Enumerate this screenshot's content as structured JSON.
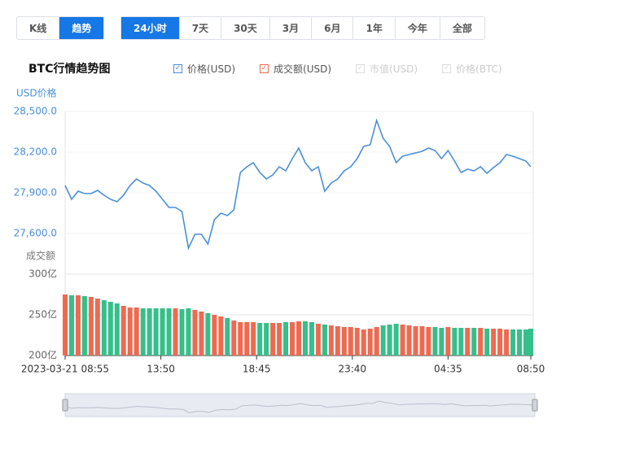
{
  "ui": {
    "view_tabs": [
      "K线",
      "趋势"
    ],
    "active_view": 1,
    "range_tabs": [
      "24小时",
      "7天",
      "30天",
      "3月",
      "6月",
      "1年",
      "今年",
      "全部"
    ],
    "active_range": 0
  },
  "chart_data": {
    "type": "line",
    "title": "BTC行情趋势图",
    "ylabel": "USD价格",
    "y2label": "成交额",
    "x": [
      0,
      20,
      40,
      60,
      80,
      100,
      120,
      140,
      160,
      180,
      200,
      220,
      240,
      260,
      280,
      300,
      320,
      340,
      360,
      380,
      400,
      420,
      440,
      460,
      480,
      500,
      520,
      540,
      560,
      580,
      600,
      620,
      640,
      660,
      680,
      700,
      720,
      740,
      760,
      780,
      800,
      820,
      840,
      860,
      880,
      900,
      920,
      940,
      960,
      980,
      1000,
      1020,
      1040,
      1060,
      1080,
      1100,
      1120,
      1140,
      1160,
      1180,
      1200,
      1220,
      1240,
      1260,
      1280,
      1300,
      1320,
      1340,
      1360,
      1380,
      1400,
      1420,
      1435
    ],
    "xlim": [
      0,
      1435
    ],
    "xticks": [
      {
        "value": 0,
        "label": "2023-03-21 08:55"
      },
      {
        "value": 295,
        "label": "13:50"
      },
      {
        "value": 590,
        "label": "18:45"
      },
      {
        "value": 885,
        "label": "23:40"
      },
      {
        "value": 1180,
        "label": "04:35"
      },
      {
        "value": 1435,
        "label": "08:50"
      }
    ],
    "ylim": [
      27450,
      28500
    ],
    "yticks": [
      {
        "value": 27600,
        "label": "27,600.0"
      },
      {
        "value": 27900,
        "label": "27,900.0"
      },
      {
        "value": 28200,
        "label": "28,200.0"
      },
      {
        "value": 28500,
        "label": "28,500.0"
      }
    ],
    "y2lim": [
      200,
      300
    ],
    "y2ticks": [
      {
        "value": 200,
        "label": "200亿"
      },
      {
        "value": 250,
        "label": "250亿"
      },
      {
        "value": 300,
        "label": "300亿"
      }
    ],
    "series": [
      {
        "name": "价格(USD)",
        "color": "#4a90d9",
        "values": [
          27954,
          27852,
          27912,
          27894,
          27894,
          27918,
          27882,
          27852,
          27834,
          27882,
          27954,
          28002,
          27972,
          27954,
          27912,
          27852,
          27792,
          27792,
          27762,
          27492,
          27594,
          27594,
          27522,
          27702,
          27750,
          27732,
          27774,
          28050,
          28092,
          28122,
          28050,
          28002,
          28032,
          28092,
          28062,
          28152,
          28230,
          28122,
          28062,
          28092,
          27912,
          27972,
          28002,
          28062,
          28092,
          28152,
          28242,
          28254,
          28434,
          28302,
          28242,
          28122,
          28170,
          28182,
          28194,
          28206,
          28230,
          28212,
          28152,
          28212,
          28134,
          28050,
          28074,
          28062,
          28092,
          28044,
          28086,
          28122,
          28182,
          28170,
          28152,
          28134,
          28092
        ]
      },
      {
        "name": "成交额(USD)",
        "type": "bar",
        "axis": "y2",
        "color": "#ee6a50",
        "down_color": "#35bf8b",
        "values": [
          275,
          274,
          274,
          273,
          272,
          270,
          268,
          266,
          264,
          261,
          259,
          259,
          258,
          258,
          258,
          258,
          258,
          258,
          257,
          258,
          256,
          254,
          252,
          250,
          248,
          246,
          243,
          241,
          241,
          241,
          240,
          240,
          240,
          240,
          241,
          241,
          242,
          242,
          241,
          239,
          238,
          237,
          236,
          235,
          235,
          234,
          232,
          233,
          235,
          237,
          238,
          239,
          238,
          237,
          236,
          236,
          235,
          235,
          234,
          235,
          234,
          234,
          234,
          234,
          234,
          233,
          233,
          233,
          232,
          232,
          232,
          232,
          233
        ]
      }
    ],
    "legend_disabled": [
      "市值(USD)",
      "价格(BTC)"
    ]
  }
}
